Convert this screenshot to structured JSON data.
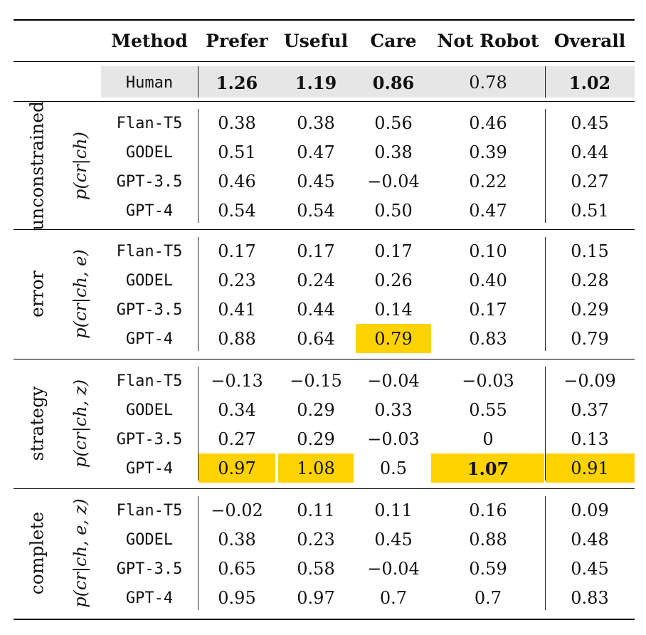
{
  "columns": [
    "Method",
    "Prefer",
    "Useful",
    "Care",
    "Not Robot",
    "Overall"
  ],
  "human": {
    "method": "Human",
    "values": [
      "1.26",
      "1.19",
      "0.86",
      "0.78",
      "1.02"
    ],
    "bold": [
      true,
      true,
      true,
      false,
      true
    ]
  },
  "groups": [
    {
      "name": "unconstrained",
      "formula": "p(cr|ch)",
      "rows": [
        {
          "method": "Flan-T5",
          "values": [
            "0.38",
            "0.38",
            "0.56",
            "0.46",
            "0.45"
          ]
        },
        {
          "method": "GODEL",
          "values": [
            "0.51",
            "0.47",
            "0.38",
            "0.39",
            "0.44"
          ]
        },
        {
          "method": "GPT-3.5",
          "values": [
            "0.46",
            "0.45",
            "−0.04",
            "0.22",
            "0.27"
          ]
        },
        {
          "method": "GPT-4",
          "values": [
            "0.54",
            "0.54",
            "0.50",
            "0.47",
            "0.51"
          ]
        }
      ]
    },
    {
      "name": "error",
      "formula": "p(cr|ch, e)",
      "rows": [
        {
          "method": "Flan-T5",
          "values": [
            "0.17",
            "0.17",
            "0.17",
            "0.10",
            "0.15"
          ]
        },
        {
          "method": "GODEL",
          "values": [
            "0.23",
            "0.24",
            "0.26",
            "0.40",
            "0.28"
          ]
        },
        {
          "method": "GPT-3.5",
          "values": [
            "0.41",
            "0.44",
            "0.14",
            "0.17",
            "0.29"
          ]
        },
        {
          "method": "GPT-4",
          "values": [
            "0.88",
            "0.64",
            "0.79",
            "0.83",
            "0.79"
          ],
          "highlight": [
            false,
            false,
            true,
            false,
            false
          ]
        }
      ]
    },
    {
      "name": "strategy",
      "formula": "p(cr|ch, z)",
      "rows": [
        {
          "method": "Flan-T5",
          "values": [
            "−0.13",
            "−0.15",
            "−0.04",
            "−0.03",
            "−0.09"
          ]
        },
        {
          "method": "GODEL",
          "values": [
            "0.34",
            "0.29",
            "0.33",
            "0.55",
            "0.37"
          ]
        },
        {
          "method": "GPT-3.5",
          "values": [
            "0.27",
            "0.29",
            "−0.03",
            "0",
            "0.13"
          ]
        },
        {
          "method": "GPT-4",
          "values": [
            "0.97",
            "1.08",
            "0.5",
            "1.07",
            "0.91"
          ],
          "highlight": [
            true,
            true,
            false,
            true,
            true
          ],
          "bold": [
            false,
            false,
            false,
            true,
            false
          ]
        }
      ]
    },
    {
      "name": "complete",
      "formula": "p(cr|ch, e, z)",
      "rows": [
        {
          "method": "Flan-T5",
          "values": [
            "−0.02",
            "0.11",
            "0.11",
            "0.16",
            "0.09"
          ]
        },
        {
          "method": "GODEL",
          "values": [
            "0.38",
            "0.23",
            "0.45",
            "0.88",
            "0.48"
          ]
        },
        {
          "method": "GPT-3.5",
          "values": [
            "0.65",
            "0.58",
            "−0.04",
            "0.59",
            "0.45"
          ]
        },
        {
          "method": "GPT-4",
          "values": [
            "0.95",
            "0.97",
            "0.7",
            "0.7",
            "0.83"
          ]
        }
      ]
    }
  ],
  "colors": {
    "highlight": "#ffd200",
    "human_row": "#e6e6e6"
  }
}
